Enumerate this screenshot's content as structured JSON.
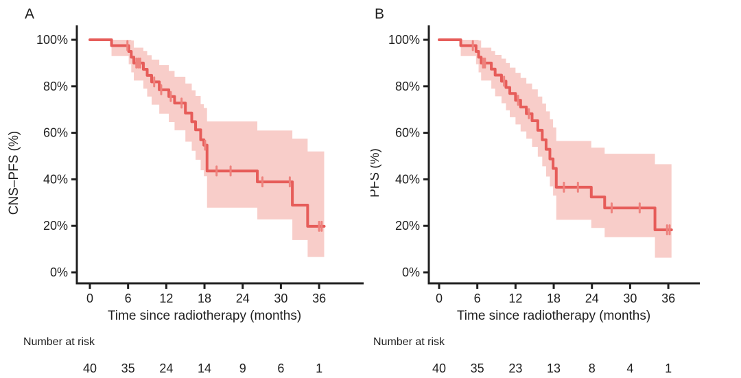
{
  "figure": {
    "background": "#ffffff",
    "text_color": "#1f1f1f",
    "axis_color": "#1f1f1f"
  },
  "chart_data": [
    {
      "panel_label": "A",
      "type": "line",
      "chart_kind": "kaplan-meier-step-curve-with-ci-band",
      "ylabel": "CNS–PFS (%)",
      "xlabel": "Time since radiotherapy (months)",
      "xticks": [
        0,
        6,
        12,
        18,
        24,
        30,
        36
      ],
      "yticks": [
        0,
        20,
        40,
        60,
        80,
        100
      ],
      "ytick_labels": [
        "0%",
        "20%",
        "40%",
        "60%",
        "80%",
        "100%"
      ],
      "xlim": [
        0,
        39
      ],
      "ylim": [
        0,
        100
      ],
      "grid": false,
      "legend": "none",
      "line_color": "#e65c59",
      "censor_color": "#ee827d",
      "band_color": "#f8cdc9",
      "steps": [
        [
          0,
          100
        ],
        [
          3.4,
          97.5
        ],
        [
          6.1,
          95.0
        ],
        [
          6.5,
          92.5
        ],
        [
          6.9,
          90.0
        ],
        [
          8.4,
          87.3
        ],
        [
          9.0,
          84.7
        ],
        [
          9.7,
          81.9
        ],
        [
          10.9,
          78.5
        ],
        [
          12.4,
          75.6
        ],
        [
          13.3,
          72.8
        ],
        [
          15.0,
          68.5
        ],
        [
          16.0,
          64.8
        ],
        [
          16.6,
          61.3
        ],
        [
          17.4,
          57.0
        ],
        [
          17.9,
          54.7
        ],
        [
          18.4,
          43.6
        ],
        [
          26.3,
          38.9
        ],
        [
          31.8,
          28.9
        ],
        [
          34.2,
          19.8
        ]
      ],
      "end_time": 36.8,
      "censor_times": [
        5.9,
        7.3,
        7.6,
        7.9,
        10.1,
        11.2,
        12.7,
        14.4,
        18.1,
        19.9,
        22.1,
        27.1,
        31.4,
        36.0,
        36.4
      ],
      "ci_steps": [
        [
          3.4,
          93.0,
          100
        ],
        [
          6.1,
          89.5,
          100
        ],
        [
          6.5,
          86.0,
          99.7
        ],
        [
          6.9,
          82.5,
          96.6
        ],
        [
          8.4,
          79.0,
          95.2
        ],
        [
          9.0,
          75.6,
          93.4
        ],
        [
          9.7,
          72.1,
          91.5
        ],
        [
          10.9,
          68.2,
          89.1
        ],
        [
          12.4,
          64.6,
          86.6
        ],
        [
          13.3,
          61.1,
          84.1
        ],
        [
          15.0,
          56.2,
          81.2
        ],
        [
          16.0,
          52.3,
          78.3
        ],
        [
          16.6,
          48.4,
          75.8
        ],
        [
          17.4,
          43.9,
          72.3
        ],
        [
          17.9,
          41.3,
          70.7
        ],
        [
          18.4,
          27.8,
          64.9
        ],
        [
          26.3,
          22.8,
          61.0
        ],
        [
          31.8,
          13.9,
          57.5
        ],
        [
          34.2,
          6.6,
          52.0
        ]
      ],
      "risk_table": {
        "label": "Number at risk",
        "times": [
          0,
          6,
          12,
          18,
          24,
          30,
          36
        ],
        "values": [
          40,
          35,
          24,
          14,
          9,
          6,
          1
        ]
      }
    },
    {
      "panel_label": "B",
      "type": "line",
      "chart_kind": "kaplan-meier-step-curve-with-ci-band",
      "ylabel": "PFS (%)",
      "xlabel": "Time since radiotherapy (months)",
      "xticks": [
        0,
        6,
        12,
        18,
        24,
        30,
        36
      ],
      "yticks": [
        0,
        20,
        40,
        60,
        80,
        100
      ],
      "ytick_labels": [
        "0%",
        "20%",
        "40%",
        "60%",
        "80%",
        "100%"
      ],
      "xlim": [
        0,
        39
      ],
      "ylim": [
        0,
        100
      ],
      "grid": false,
      "legend": "none",
      "line_color": "#e65c59",
      "censor_color": "#ee827d",
      "band_color": "#f8cdc9",
      "steps": [
        [
          0,
          100
        ],
        [
          3.4,
          97.5
        ],
        [
          5.8,
          95.0
        ],
        [
          6.2,
          92.5
        ],
        [
          6.6,
          90.0
        ],
        [
          8.2,
          87.4
        ],
        [
          8.8,
          84.8
        ],
        [
          9.8,
          82.2
        ],
        [
          10.5,
          79.5
        ],
        [
          11.1,
          76.9
        ],
        [
          12.0,
          74.0
        ],
        [
          12.8,
          71.1
        ],
        [
          13.7,
          68.2
        ],
        [
          14.6,
          65.2
        ],
        [
          15.5,
          61.1
        ],
        [
          16.2,
          57.0
        ],
        [
          16.8,
          52.9
        ],
        [
          17.4,
          48.8
        ],
        [
          17.9,
          44.7
        ],
        [
          18.4,
          36.6
        ],
        [
          23.9,
          32.4
        ],
        [
          26.0,
          27.7
        ],
        [
          33.9,
          18.3
        ]
      ],
      "end_time": 36.5,
      "censor_times": [
        5.3,
        6.9,
        7.2,
        10.2,
        12.4,
        14.1,
        19.6,
        21.8,
        27.1,
        31.5,
        35.8,
        36.2
      ],
      "ci_steps": [
        [
          3.4,
          93.0,
          100
        ],
        [
          5.8,
          89.5,
          100
        ],
        [
          6.2,
          86.0,
          99.7
        ],
        [
          6.6,
          82.5,
          96.6
        ],
        [
          8.2,
          79.0,
          95.2
        ],
        [
          8.8,
          75.7,
          93.5
        ],
        [
          9.8,
          72.7,
          91.9
        ],
        [
          10.5,
          69.7,
          90.0
        ],
        [
          11.1,
          66.7,
          88.0
        ],
        [
          12.0,
          63.6,
          85.8
        ],
        [
          12.8,
          60.6,
          83.6
        ],
        [
          13.7,
          57.5,
          81.2
        ],
        [
          14.6,
          54.0,
          78.7
        ],
        [
          15.5,
          49.7,
          75.6
        ],
        [
          16.2,
          45.6,
          72.6
        ],
        [
          16.8,
          41.2,
          69.2
        ],
        [
          17.4,
          37.0,
          65.8
        ],
        [
          17.9,
          33.0,
          62.3
        ],
        [
          18.4,
          22.6,
          56.5
        ],
        [
          23.9,
          19.1,
          53.6
        ],
        [
          26.0,
          15.1,
          51.0
        ],
        [
          33.9,
          6.3,
          46.5
        ]
      ],
      "risk_table": {
        "label": "Number at risk",
        "times": [
          0,
          6,
          12,
          18,
          24,
          30,
          36
        ],
        "values": [
          40,
          35,
          23,
          13,
          8,
          4,
          1
        ]
      }
    }
  ]
}
